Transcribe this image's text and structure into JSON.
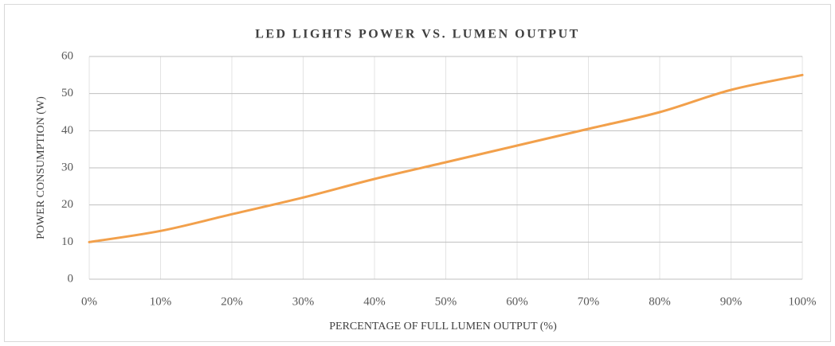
{
  "chart_data": {
    "type": "line",
    "title": "LED LIGHTS POWER VS. LUMEN OUTPUT",
    "x_label": "PERCENTAGE OF FULL LUMEN OUTPUT (%)",
    "y_label": "POWER CONSUMPTION (W)",
    "x": [
      0,
      10,
      20,
      30,
      40,
      50,
      60,
      70,
      80,
      90,
      100
    ],
    "series": [
      {
        "color": "#f2a04b",
        "values": [
          10,
          13,
          17.5,
          22,
          27,
          31.5,
          36,
          40.5,
          45,
          51,
          55
        ]
      }
    ],
    "xlim": [
      0,
      100
    ],
    "xticks": [
      {
        "value": 0,
        "label": "0%"
      },
      {
        "value": 10,
        "label": "10%"
      },
      {
        "value": 20,
        "label": "20%"
      },
      {
        "value": 30,
        "label": "30%"
      },
      {
        "value": 40,
        "label": "40%"
      },
      {
        "value": 50,
        "label": "50%"
      },
      {
        "value": 60,
        "label": "60%"
      },
      {
        "value": 70,
        "label": "70%"
      },
      {
        "value": 80,
        "label": "80%"
      },
      {
        "value": 90,
        "label": "90%"
      },
      {
        "value": 100,
        "label": "100%"
      }
    ],
    "ylim": [
      0,
      60
    ],
    "yticks": [
      0,
      10,
      20,
      30,
      40,
      50,
      60
    ],
    "grid": true
  }
}
